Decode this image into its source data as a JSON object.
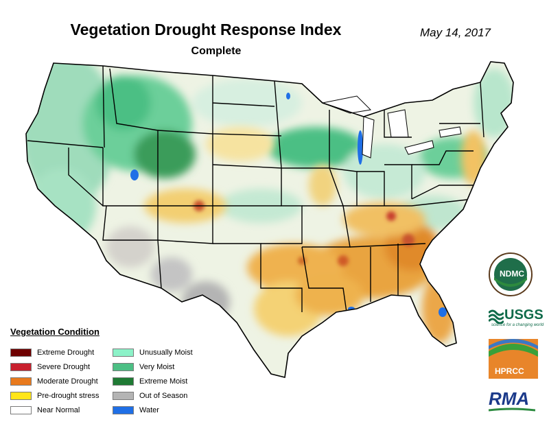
{
  "header": {
    "title": "Vegetation Drought Response Index",
    "subtitle": "Complete",
    "date": "May 14, 2017"
  },
  "legend": {
    "title": "Vegetation Condition",
    "items": [
      {
        "label": "Extreme Drought",
        "color": "#6e0000"
      },
      {
        "label": "Severe Drought",
        "color": "#c8202e"
      },
      {
        "label": "Moderate Drought",
        "color": "#e87a1e"
      },
      {
        "label": "Pre-drought stress",
        "color": "#ffe51a"
      },
      {
        "label": "Near Normal",
        "color": "#ffffff"
      },
      {
        "label": "Unusually Moist",
        "color": "#8cf2c8"
      },
      {
        "label": "Very Moist",
        "color": "#4cbf84"
      },
      {
        "label": "Extreme Moist",
        "color": "#1f7a34"
      },
      {
        "label": "Out of Season",
        "color": "#b4b4b4"
      },
      {
        "label": "Water",
        "color": "#1f6fe6"
      }
    ]
  },
  "logos": {
    "ndmc": "NDMC",
    "usgs": "USGS",
    "usgs_tagline": "science for a changing world",
    "hprcc": "HPRCC",
    "rma": "RMA"
  },
  "colors": {
    "moist_base": "#bfead2",
    "very_moist": "#4cbf84",
    "extreme_moist": "#1f7a34",
    "pre_drought": "#f7e07a",
    "moderate": "#e08a2a",
    "severe": "#c8202e",
    "out_of_season": "#b4b4b4",
    "water": "#1f6fe6",
    "near_normal": "#f4f1e6"
  }
}
